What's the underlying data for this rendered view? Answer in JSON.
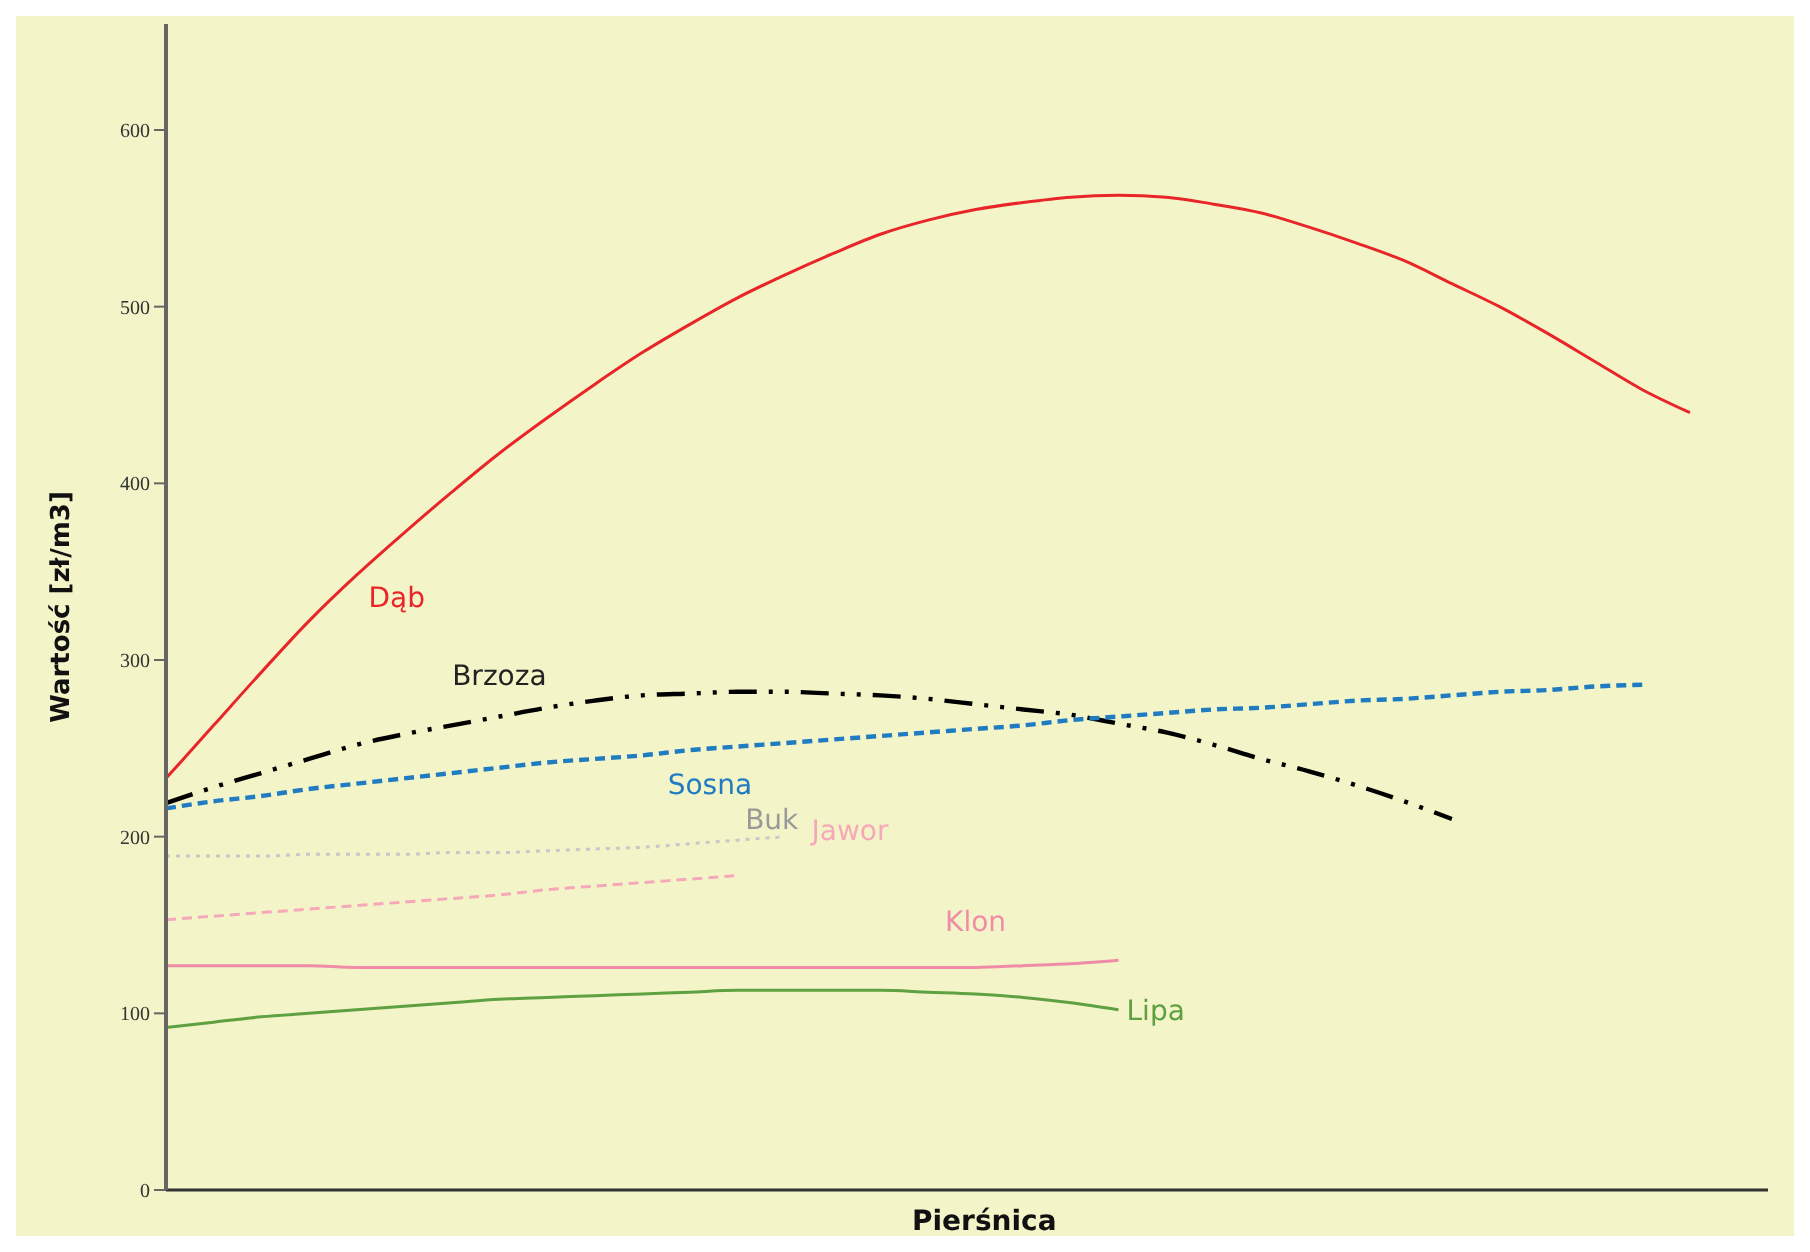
{
  "chart_data": {
    "type": "line",
    "xlabel": "Pierśnica",
    "ylabel": "Wartość [zł/m3]",
    "categories": [
      null,
      null,
      null,
      null,
      null,
      null,
      null,
      null,
      null,
      null,
      null,
      null,
      null,
      null,
      null,
      null,
      null,
      null,
      null,
      null,
      null,
      null,
      null,
      null,
      null,
      null,
      null,
      null,
      null,
      null,
      null,
      null,
      null
    ],
    "ylim": [
      0,
      660
    ],
    "yticks": [
      0,
      100,
      200,
      300,
      400,
      500,
      600
    ],
    "tick_labels": "y",
    "marker": "none",
    "series": [
      {
        "name": "Dąb",
        "color": "#e8262a",
        "line_style": "solid",
        "values": [
          233,
          263,
          293,
          322,
          348,
          372,
          395,
          417,
          437,
          456,
          474,
          490,
          505,
          518,
          530,
          541,
          549,
          555,
          559,
          562,
          563,
          562,
          558,
          553,
          545,
          536,
          526,
          513,
          500,
          485,
          469,
          453,
          440
        ]
      },
      {
        "name": "Brzoza",
        "color": "#000000",
        "line_style": "dashdot",
        "values": [
          219,
          228,
          236,
          244,
          252,
          258,
          263,
          268,
          273,
          277,
          280,
          281,
          282,
          282,
          281,
          280,
          278,
          275,
          272,
          269,
          264,
          259,
          252,
          244,
          237,
          229,
          220,
          210,
          null,
          null,
          null,
          null,
          null
        ]
      },
      {
        "name": "Sosna",
        "color": "#1f7bc2",
        "line_style": "dashed",
        "values": [
          216,
          220,
          223,
          227,
          230,
          233,
          236,
          239,
          242,
          244,
          246,
          249,
          251,
          253,
          255,
          257,
          259,
          261,
          263,
          266,
          268,
          270,
          272,
          273,
          275,
          277,
          278,
          280,
          282,
          283,
          285,
          286,
          null
        ]
      },
      {
        "name": "Buk",
        "color": "#c8c8c8",
        "line_style": "dotted",
        "values": [
          189,
          189,
          189,
          190,
          190,
          190,
          191,
          191,
          192,
          193,
          194,
          196,
          198,
          200,
          null,
          null,
          null,
          null,
          null,
          null,
          null,
          null,
          null,
          null,
          null,
          null,
          null,
          null,
          null,
          null,
          null,
          null,
          null
        ]
      },
      {
        "name": "Jawor",
        "color": "#f7a8b8",
        "line_style": "dashed",
        "values": [
          153,
          155,
          157,
          159,
          161,
          163,
          165,
          167,
          170,
          172,
          174,
          176,
          178,
          null,
          null,
          null,
          null,
          null,
          null,
          null,
          null,
          null,
          null,
          null,
          null,
          null,
          null,
          null,
          null,
          null,
          null,
          null,
          null
        ]
      },
      {
        "name": "Klon",
        "color": "#f08ca8",
        "line_style": "solid",
        "values": [
          127,
          127,
          127,
          127,
          126,
          126,
          126,
          126,
          126,
          126,
          126,
          126,
          126,
          126,
          126,
          126,
          126,
          126,
          127,
          128,
          130,
          null,
          null,
          null,
          null,
          null,
          null,
          null,
          null,
          null,
          null,
          null,
          null
        ]
      },
      {
        "name": "Lipa",
        "color": "#5fa040",
        "line_style": "solid",
        "values": [
          92,
          95,
          98,
          100,
          102,
          104,
          106,
          108,
          109,
          110,
          111,
          112,
          113,
          113,
          113,
          113,
          112,
          111,
          109,
          106,
          102,
          null,
          null,
          null,
          null,
          null,
          null,
          null,
          null,
          null,
          null,
          null,
          null
        ]
      }
    ]
  }
}
